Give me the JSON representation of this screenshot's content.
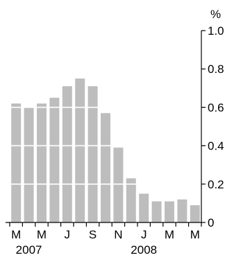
{
  "chart_data": {
    "type": "bar",
    "title": "",
    "xlabel": "",
    "ylabel": "%",
    "ylim": [
      0,
      1.0
    ],
    "yticks": [
      {
        "value": 0,
        "label": "0"
      },
      {
        "value": 0.2,
        "label": "0.2"
      },
      {
        "value": 0.4,
        "label": "0.4"
      },
      {
        "value": 0.6,
        "label": "0.6"
      },
      {
        "value": 0.8,
        "label": "0.8"
      },
      {
        "value": 1.0,
        "label": "1.0"
      }
    ],
    "y_axis_side": "right",
    "grid": "horizontal white lines through bars",
    "bar_color": "#bdbdbd",
    "categories": [
      "Mar 2007",
      "Apr 2007",
      "May 2007",
      "Jun 2007",
      "Jul 2007",
      "Aug 2007",
      "Sep 2007",
      "Oct 2007",
      "Nov 2007",
      "Dec 2007",
      "Jan 2008",
      "Feb 2008",
      "Mar 2008",
      "Apr 2008",
      "May 2008"
    ],
    "values": [
      0.62,
      0.6,
      0.62,
      0.65,
      0.71,
      0.75,
      0.71,
      0.57,
      0.39,
      0.23,
      0.15,
      0.11,
      0.11,
      0.12,
      0.09
    ],
    "x_tick_labels": [
      {
        "index": 0,
        "label": "M"
      },
      {
        "index": 2,
        "label": "M"
      },
      {
        "index": 4,
        "label": "J"
      },
      {
        "index": 6,
        "label": "S"
      },
      {
        "index": 8,
        "label": "N"
      },
      {
        "index": 10,
        "label": "J"
      },
      {
        "index": 12,
        "label": "M"
      },
      {
        "index": 14,
        "label": "M"
      }
    ],
    "year_labels": [
      {
        "index": 1,
        "label": "2007"
      },
      {
        "index": 10,
        "label": "2008"
      }
    ]
  }
}
